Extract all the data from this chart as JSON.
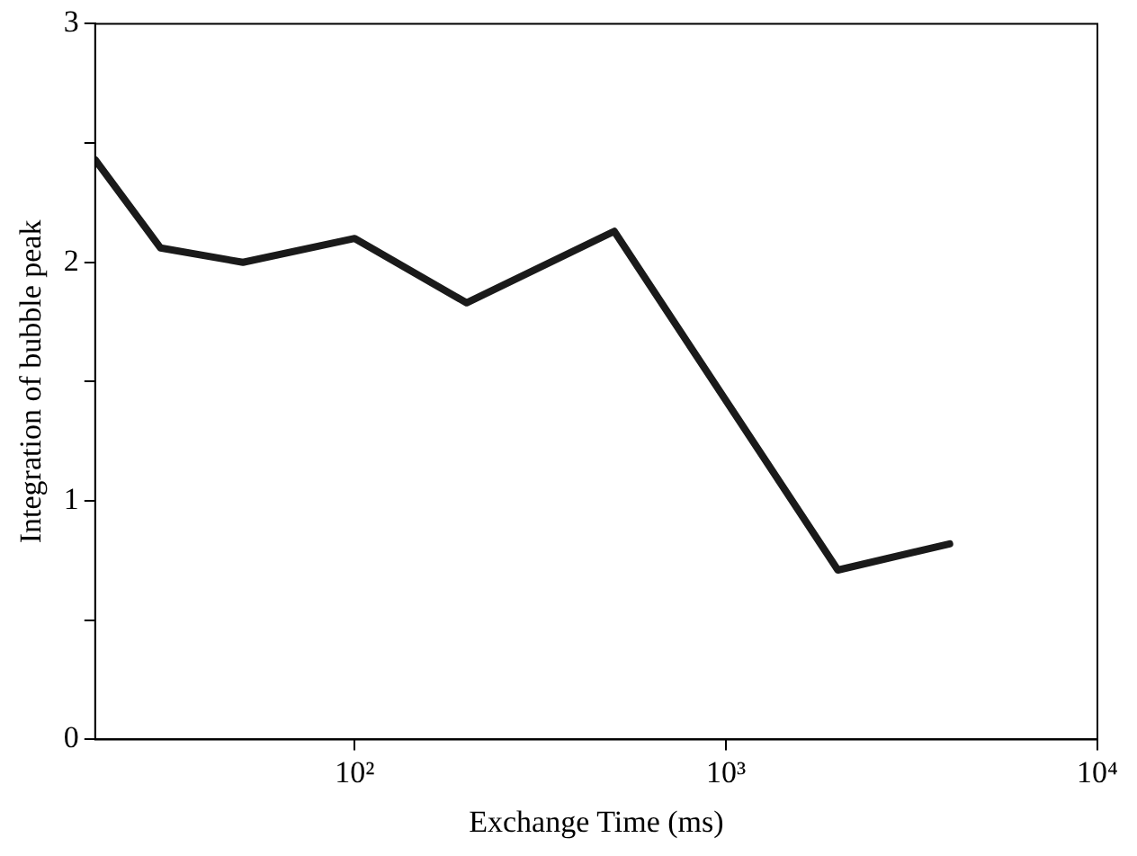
{
  "chart_data": {
    "type": "line",
    "xlabel": "Exchange Time (ms)",
    "ylabel": "Integration of bubble peak",
    "x": [
      20,
      30,
      50,
      100,
      200,
      500,
      2000,
      4000
    ],
    "series": [
      {
        "color": "#1a1a1a",
        "values": [
          2.43,
          2.06,
          2.0,
          2.1,
          1.83,
          2.13,
          0.71,
          0.82
        ]
      }
    ],
    "log": "x",
    "xlim": [
      20,
      10000
    ],
    "xticks": [
      {
        "value": 100,
        "label": "10²"
      },
      {
        "value": 1000,
        "label": "10³"
      },
      {
        "value": 10000,
        "label": "10⁴"
      }
    ],
    "ylim": [
      0,
      3
    ],
    "yticks": [
      0,
      {
        "value": 0.5,
        "label": null
      },
      1,
      {
        "value": 1.5,
        "label": null
      },
      2,
      {
        "value": 2.5,
        "label": null
      },
      3
    ],
    "grid": false,
    "legend": false,
    "marker": "none",
    "line_style": "solid"
  }
}
